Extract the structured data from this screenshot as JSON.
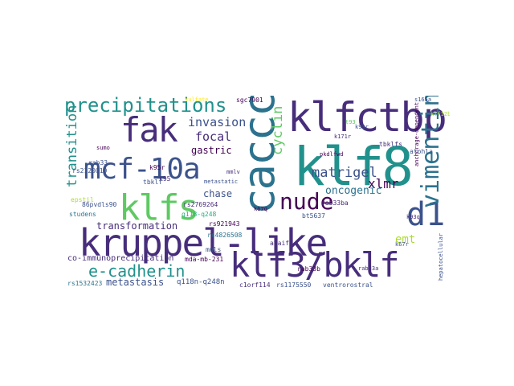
{
  "words": {
    "kruppel_like": "kruppel-like",
    "klf8": "klf8",
    "klfctbp": "klfctbp",
    "caccc": "caccc",
    "mcf_10a": "mcf-10a",
    "fak": "fak",
    "klfs": "klfs",
    "vimentin": "vimentin",
    "klf3_bklf": "klf3/bklf",
    "d1": "d1",
    "nude": "nude",
    "precipitations": "precipitations",
    "e_cadherin": "e-cadherin",
    "transition": "transition",
    "matrigel": "matrigel",
    "cyclin": "cyclin",
    "invasion": "invasion",
    "focal": "focal",
    "xlmr": "xlmr",
    "emt": "emt",
    "oncogenic": "oncogenic",
    "metastasis": "metastasis",
    "transformation": "transformation",
    "co_immunoprecipitation": "co-immunoprecipitation",
    "gastric": "gastric",
    "chase": "chase",
    "q118n_q248n": "q118n-q248n",
    "rs2769264": "rs2769264",
    "rs921943": "rs921943",
    "rs4826508": "rs4826508",
    "mda_mb_231": "mda-mb-231",
    "bt5637": "bt5637",
    "rab33ba": "rab33ba",
    "tbklfs": "tbklfs",
    "rab33b": "rab33b",
    "ventrorostral": "ventrorostral",
    "c1orf114": "c1orf114",
    "rs1175550": "rs1175550",
    "rs1532423": "rs1532423",
    "q118_q248": "q118-q248",
    "k95r": "k95r",
    "k95": "k95",
    "tbklf": "tbklf",
    "rs2120019": "rs2120019",
    "sgc7901": "sgc7901",
    "anchorage_dependent": "anchorage-dependent",
    "hepatocellular": "hepatocellular",
    "atohla": "atohla",
    "sumo": "sumo",
    "rab33": "rab33",
    "mnls": "mnls",
    "studens": "studens",
    "epstil": "epstil",
    "k171r": "k171r",
    "k93r": "k93r",
    "k67q": "k67q",
    "avaif": "avaif",
    "s165a": "s165a",
    "klf12b": "klf12b",
    "mmlv": "mmlv",
    "t93": "t93",
    "k67r": "k67r",
    "k93q": "k93q",
    "b6pvdls90": "86pvdls90",
    "pkdlfwd": "pkdlfwd",
    "rab33a": "rab33a",
    "metastatic": "metastatic",
    "sulfate": "sulfate"
  },
  "colors": {
    "background": "#ffffff",
    "purple_dark": "#440154",
    "purple": "#472d7b",
    "indigo": "#3b528b",
    "blue": "#2c728e",
    "teal": "#21918c",
    "green_teal": "#28ae80",
    "green": "#5ec962",
    "lime": "#addc30",
    "yellow": "#fde725"
  }
}
